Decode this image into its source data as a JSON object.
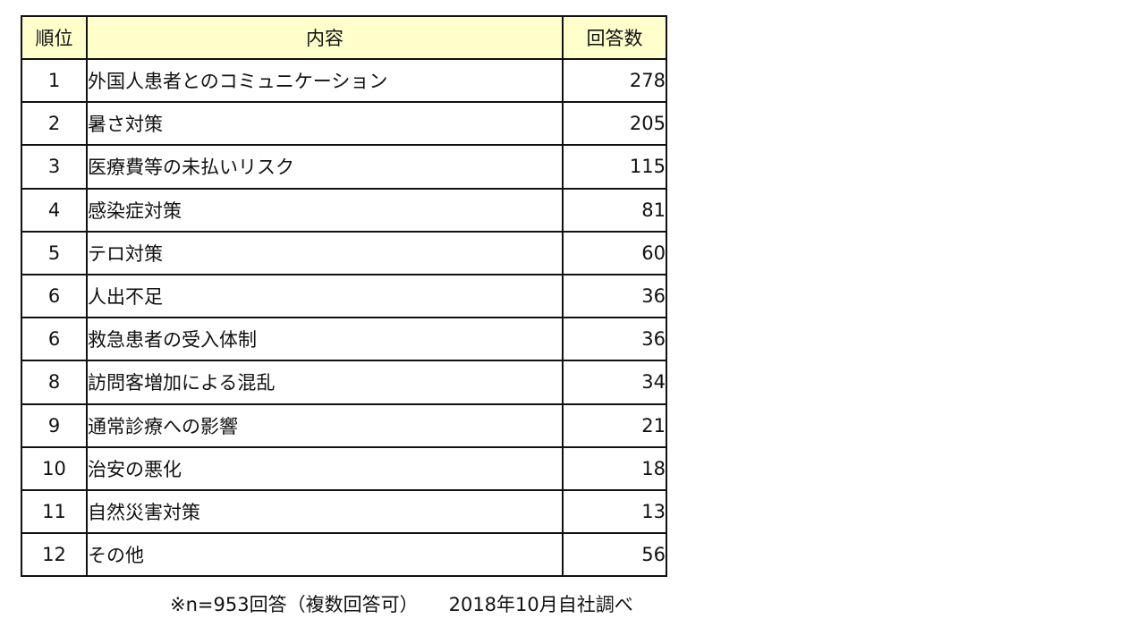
{
  "chart_data": {
    "type": "table",
    "columns": [
      "順位",
      "内容",
      "回答数"
    ],
    "rows": [
      {
        "rank": "1",
        "content": "外国人患者とのコミュニケーション",
        "count": 278
      },
      {
        "rank": "2",
        "content": "暑さ対策",
        "count": 205
      },
      {
        "rank": "3",
        "content": "医療費等の未払いリスク",
        "count": 115
      },
      {
        "rank": "4",
        "content": "感染症対策",
        "count": 81
      },
      {
        "rank": "5",
        "content": "テロ対策",
        "count": 60
      },
      {
        "rank": "6",
        "content": "人出不足",
        "count": 36
      },
      {
        "rank": "6",
        "content": "救急患者の受入体制",
        "count": 36
      },
      {
        "rank": "8",
        "content": "訪問客増加による混乱",
        "count": 34
      },
      {
        "rank": "9",
        "content": "通常診療への影響",
        "count": 21
      },
      {
        "rank": "10",
        "content": "治安の悪化",
        "count": 18
      },
      {
        "rank": "11",
        "content": "自然災害対策",
        "count": 13
      },
      {
        "rank": "12",
        "content": "その他",
        "count": 56
      }
    ],
    "header_fill": "#ffffcc",
    "border_color": "#111111"
  },
  "footnote": {
    "sample": "※n=953回答（複数回答可）",
    "source": "2018年10月自社調べ"
  }
}
